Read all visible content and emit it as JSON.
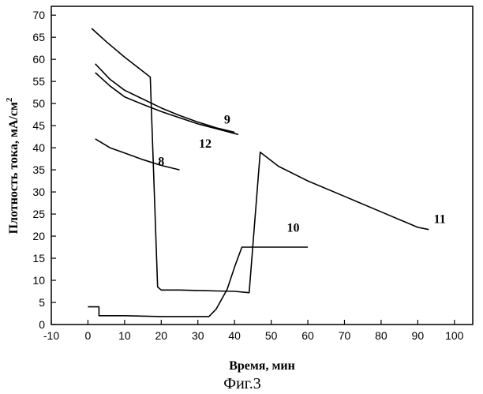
{
  "chart_data": {
    "type": "line",
    "title": "",
    "caption": "Фиг.3",
    "xlabel": "Время, мин",
    "ylabel": "Плотность тока, мА/см",
    "ylabel_superscript": "2",
    "xlim": [
      -10,
      105
    ],
    "ylim": [
      0,
      72
    ],
    "xticks": [
      -10,
      0,
      10,
      20,
      30,
      40,
      50,
      60,
      70,
      80,
      90,
      100
    ],
    "yticks": [
      0,
      5,
      10,
      15,
      20,
      25,
      30,
      35,
      40,
      45,
      50,
      55,
      60,
      65,
      70
    ],
    "grid": false,
    "series": [
      {
        "name": "8",
        "x": [
          2,
          6,
          10,
          15,
          20,
          25
        ],
        "y": [
          42,
          40,
          38.8,
          37.3,
          36,
          35
        ]
      },
      {
        "name": "9",
        "x": [
          2,
          6,
          10,
          15,
          20,
          25,
          30,
          35,
          40
        ],
        "y": [
          59,
          55.5,
          53,
          51,
          49,
          47.3,
          45.8,
          44.5,
          43.5
        ]
      },
      {
        "name": "12",
        "x": [
          2,
          6,
          10,
          15,
          20,
          25,
          30,
          35,
          41
        ],
        "y": [
          57,
          54,
          51.5,
          49.8,
          48.2,
          46.8,
          45.4,
          44.3,
          43
        ]
      },
      {
        "name": "11",
        "x": [
          1,
          5,
          10,
          17,
          19,
          20,
          25,
          30,
          35,
          40,
          44,
          47,
          52,
          60,
          70,
          80,
          90,
          93
        ],
        "y": [
          67,
          64,
          60.5,
          56,
          8.5,
          7.8,
          7.8,
          7.7,
          7.6,
          7.5,
          7.2,
          39,
          35.8,
          32.5,
          29,
          25.5,
          22,
          21.5
        ]
      },
      {
        "name": "10",
        "x": [
          0,
          3,
          3,
          10,
          20,
          30,
          33,
          35,
          38,
          40,
          42,
          50,
          60
        ],
        "y": [
          4,
          4,
          2,
          2,
          1.8,
          1.8,
          1.8,
          3.5,
          8,
          13,
          17.5,
          17.5,
          17.5
        ]
      }
    ],
    "annotations": [
      {
        "text": "9",
        "x": 38,
        "y": 45.5
      },
      {
        "text": "12",
        "x": 32,
        "y": 40
      },
      {
        "text": "8",
        "x": 20,
        "y": 36
      },
      {
        "text": "11",
        "x": 96,
        "y": 23
      },
      {
        "text": "10",
        "x": 56,
        "y": 21
      }
    ]
  }
}
